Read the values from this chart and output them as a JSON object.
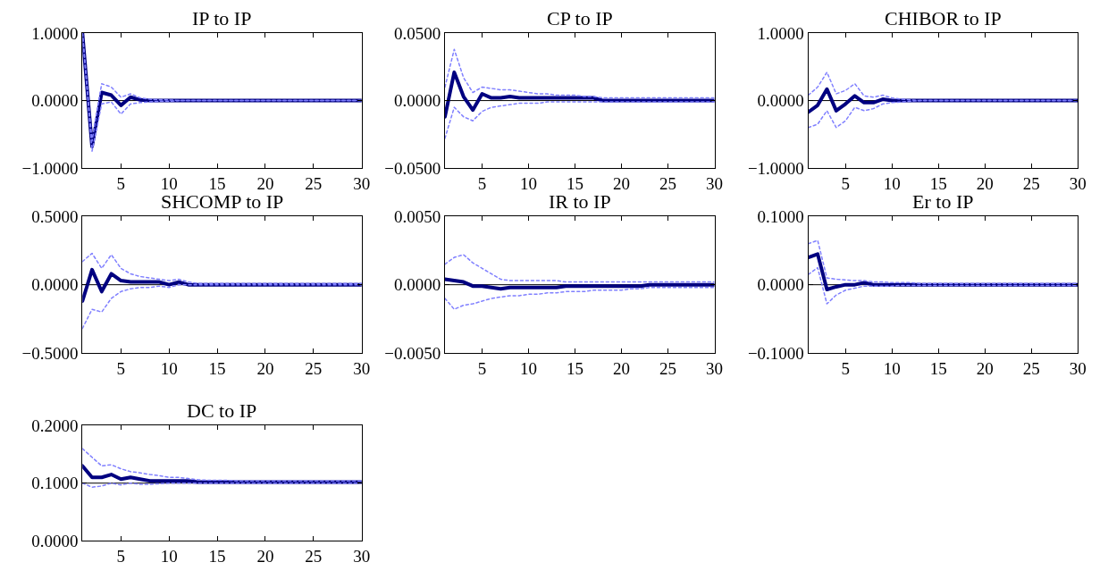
{
  "chart_data": [
    {
      "type": "line",
      "title": "IP to IP",
      "x": [
        1,
        2,
        3,
        4,
        5,
        6,
        7,
        8,
        9,
        10,
        11,
        12,
        13,
        14,
        15,
        16,
        17,
        18,
        19,
        20,
        21,
        22,
        23,
        24,
        25,
        26,
        27,
        28,
        29,
        30
      ],
      "xlim": [
        1,
        30
      ],
      "xticks": [
        5,
        10,
        15,
        20,
        25,
        30
      ],
      "ylim": [
        -1,
        1
      ],
      "yticks": [
        {
          "value": -1,
          "label": "−1.0000"
        },
        {
          "value": 0,
          "label": "0.0000"
        },
        {
          "value": 1,
          "label": "1.0000"
        }
      ],
      "ref_lines": [
        {
          "axis": "y",
          "value": 0,
          "color": "#000000"
        }
      ],
      "series": [
        {
          "color": "#8080ff",
          "line_style": "dotted",
          "values": [
            1.0,
            -0.75,
            -0.05,
            -0.02,
            -0.2,
            -0.05,
            -0.03,
            -0.02,
            -0.01,
            -0.01,
            0,
            0,
            0,
            0,
            0,
            0,
            0,
            0,
            0,
            0,
            0,
            0,
            0,
            0,
            0,
            0,
            0,
            0,
            0,
            0
          ]
        },
        {
          "color": "#8080ff",
          "line_style": "dotted",
          "values": [
            1.0,
            -0.6,
            0.25,
            0.2,
            0.05,
            0.1,
            0.04,
            0.02,
            0.01,
            0.01,
            0,
            0,
            0,
            0,
            0,
            0,
            0,
            0,
            0,
            0,
            0,
            0,
            0,
            0,
            0,
            0,
            0,
            0,
            0,
            0
          ]
        },
        {
          "color": "#000080",
          "line_style": "solid",
          "values": [
            1.0,
            -0.68,
            0.12,
            0.08,
            -0.07,
            0.05,
            0.01,
            0,
            0,
            0,
            0,
            0,
            0,
            0,
            0,
            0,
            0,
            0,
            0,
            0,
            0,
            0,
            0,
            0,
            0,
            0,
            0,
            0,
            0,
            0
          ]
        }
      ]
    },
    {
      "type": "line",
      "title": "CP to IP",
      "x": [
        1,
        2,
        3,
        4,
        5,
        6,
        7,
        8,
        9,
        10,
        11,
        12,
        13,
        14,
        15,
        16,
        17,
        18,
        19,
        20,
        21,
        22,
        23,
        24,
        25,
        26,
        27,
        28,
        29,
        30
      ],
      "xlim": [
        1,
        30
      ],
      "xticks": [
        5,
        10,
        15,
        20,
        25,
        30
      ],
      "ylim": [
        -0.05,
        0.05
      ],
      "yticks": [
        {
          "value": -0.05,
          "label": "−0.0500"
        },
        {
          "value": 0,
          "label": "0.0000"
        },
        {
          "value": 0.05,
          "label": "0.0500"
        }
      ],
      "ref_lines": [
        {
          "axis": "y",
          "value": 0,
          "color": "#000000"
        }
      ],
      "series": [
        {
          "color": "#8080ff",
          "line_style": "dotted",
          "values": [
            -0.028,
            -0.005,
            -0.012,
            -0.015,
            -0.008,
            -0.005,
            -0.004,
            -0.003,
            -0.002,
            -0.002,
            -0.002,
            -0.001,
            -0.001,
            -0.001,
            -0.001,
            -0.001,
            -0.001,
            -0.001,
            -0.001,
            -0.001,
            -0.001,
            -0.001,
            -0.001,
            -0.001,
            -0.001,
            -0.001,
            -0.001,
            -0.001,
            -0.001,
            -0.001
          ]
        },
        {
          "color": "#8080ff",
          "line_style": "dotted",
          "values": [
            0.01,
            0.038,
            0.017,
            0.006,
            0.01,
            0.009,
            0.008,
            0.008,
            0.007,
            0.006,
            0.005,
            0.005,
            0.004,
            0.004,
            0.004,
            0.003,
            0.003,
            0.002,
            0.002,
            0.002,
            0.002,
            0.002,
            0.002,
            0.002,
            0.002,
            0.002,
            0.002,
            0.002,
            0.002,
            0.002
          ]
        },
        {
          "color": "#000080",
          "line_style": "solid",
          "values": [
            -0.012,
            0.021,
            0.003,
            -0.007,
            0.005,
            0.002,
            0.002,
            0.003,
            0.002,
            0.002,
            0.002,
            0.002,
            0.002,
            0.002,
            0.002,
            0.002,
            0.002,
            0,
            0,
            0,
            0,
            0,
            0,
            0,
            0,
            0,
            0,
            0,
            0,
            0
          ]
        }
      ]
    },
    {
      "type": "line",
      "title": "CHIBOR to IP",
      "x": [
        1,
        2,
        3,
        4,
        5,
        6,
        7,
        8,
        9,
        10,
        11,
        12,
        13,
        14,
        15,
        16,
        17,
        18,
        19,
        20,
        21,
        22,
        23,
        24,
        25,
        26,
        27,
        28,
        29,
        30
      ],
      "xlim": [
        1,
        30
      ],
      "xticks": [
        5,
        10,
        15,
        20,
        25,
        30
      ],
      "ylim": [
        -1,
        1
      ],
      "yticks": [
        {
          "value": -1,
          "label": "−1.0000"
        },
        {
          "value": 0,
          "label": "0.0000"
        },
        {
          "value": 1,
          "label": "1.0000"
        }
      ],
      "ref_lines": [
        {
          "axis": "y",
          "value": 0,
          "color": "#000000"
        }
      ],
      "series": [
        {
          "color": "#8080ff",
          "line_style": "dotted",
          "values": [
            -0.4,
            -0.35,
            -0.15,
            -0.4,
            -0.3,
            -0.1,
            -0.15,
            -0.12,
            -0.05,
            -0.03,
            -0.02,
            -0.01,
            0,
            0,
            0,
            0,
            0,
            0,
            0,
            0,
            0,
            0,
            0,
            0,
            0,
            0,
            0,
            0,
            0,
            0
          ]
        },
        {
          "color": "#8080ff",
          "line_style": "dotted",
          "values": [
            0.08,
            0.2,
            0.42,
            0.1,
            0.15,
            0.25,
            0.07,
            0.05,
            0.08,
            0.04,
            0.02,
            0.01,
            0,
            0,
            0,
            0,
            0,
            0,
            0,
            0,
            0,
            0,
            0,
            0,
            0,
            0,
            0,
            0,
            0,
            0
          ]
        },
        {
          "color": "#000080",
          "line_style": "solid",
          "values": [
            -0.17,
            -0.07,
            0.17,
            -0.15,
            -0.05,
            0.07,
            -0.03,
            -0.03,
            0.02,
            0,
            0,
            0,
            0,
            0,
            0,
            0,
            0,
            0,
            0,
            0,
            0,
            0,
            0,
            0,
            0,
            0,
            0,
            0,
            0,
            0
          ]
        }
      ]
    },
    {
      "type": "line",
      "title": "SHCOMP to IP",
      "x": [
        1,
        2,
        3,
        4,
        5,
        6,
        7,
        8,
        9,
        10,
        11,
        12,
        13,
        14,
        15,
        16,
        17,
        18,
        19,
        20,
        21,
        22,
        23,
        24,
        25,
        26,
        27,
        28,
        29,
        30
      ],
      "xlim": [
        1,
        30
      ],
      "xticks": [
        5,
        10,
        15,
        20,
        25,
        30
      ],
      "ylim": [
        -0.5,
        0.5
      ],
      "yticks": [
        {
          "value": -0.5,
          "label": "−0.5000"
        },
        {
          "value": 0,
          "label": "0.0000"
        },
        {
          "value": 0.5,
          "label": "0.5000"
        }
      ],
      "ref_lines": [
        {
          "axis": "y",
          "value": 0,
          "color": "#000000"
        }
      ],
      "series": [
        {
          "color": "#8080ff",
          "line_style": "dotted",
          "values": [
            -0.32,
            -0.18,
            -0.2,
            -0.1,
            -0.05,
            -0.03,
            -0.02,
            -0.02,
            -0.01,
            -0.02,
            0,
            0,
            0,
            0,
            0,
            0,
            0,
            0,
            0,
            0,
            0,
            0,
            0,
            0,
            0,
            0,
            0,
            0,
            0,
            0
          ]
        },
        {
          "color": "#8080ff",
          "line_style": "dotted",
          "values": [
            0.17,
            0.23,
            0.12,
            0.22,
            0.12,
            0.08,
            0.06,
            0.05,
            0.04,
            0.03,
            0.04,
            0.02,
            0.01,
            0.01,
            0.01,
            0.01,
            0.01,
            0.01,
            0.01,
            0.01,
            0.01,
            0.01,
            0.01,
            0.01,
            0.01,
            0.01,
            0.01,
            0.01,
            0.01,
            0.01
          ]
        },
        {
          "color": "#000080",
          "line_style": "solid",
          "values": [
            -0.12,
            0.11,
            -0.05,
            0.08,
            0.03,
            0.02,
            0.02,
            0.02,
            0.02,
            0,
            0.02,
            0,
            0,
            0,
            0,
            0,
            0,
            0,
            0,
            0,
            0,
            0,
            0,
            0,
            0,
            0,
            0,
            0,
            0,
            0
          ]
        }
      ]
    },
    {
      "type": "line",
      "title": "IR to IP",
      "x": [
        1,
        2,
        3,
        4,
        5,
        6,
        7,
        8,
        9,
        10,
        11,
        12,
        13,
        14,
        15,
        16,
        17,
        18,
        19,
        20,
        21,
        22,
        23,
        24,
        25,
        26,
        27,
        28,
        29,
        30
      ],
      "xlim": [
        1,
        30
      ],
      "xticks": [
        5,
        10,
        15,
        20,
        25,
        30
      ],
      "ylim": [
        -0.005,
        0.005
      ],
      "yticks": [
        {
          "value": -0.005,
          "label": "−0.0050"
        },
        {
          "value": 0,
          "label": "0.0000"
        },
        {
          "value": 0.005,
          "label": "0.0050"
        }
      ],
      "ref_lines": [
        {
          "axis": "y",
          "value": 0,
          "color": "#000000"
        }
      ],
      "series": [
        {
          "color": "#8080ff",
          "line_style": "dotted",
          "values": [
            -0.001,
            -0.0018,
            -0.0015,
            -0.0014,
            -0.0012,
            -0.001,
            -0.0009,
            -0.0008,
            -0.0008,
            -0.0007,
            -0.0007,
            -0.0006,
            -0.0006,
            -0.0005,
            -0.0005,
            -0.0005,
            -0.0004,
            -0.0004,
            -0.0004,
            -0.0004,
            -0.0003,
            -0.0003,
            -0.0002,
            -0.0002,
            -0.0002,
            -0.0002,
            -0.0002,
            -0.0002,
            -0.0002,
            -0.0002
          ]
        },
        {
          "color": "#8080ff",
          "line_style": "dotted",
          "values": [
            0.0015,
            0.002,
            0.0022,
            0.0016,
            0.0012,
            0.0008,
            0.0004,
            0.0003,
            0.0003,
            0.0003,
            0.0003,
            0.0003,
            0.0003,
            0.0002,
            0.0002,
            0.0002,
            0.0002,
            0.0002,
            0.0002,
            0.0002,
            0.0002,
            0.0002,
            0.0002,
            0.0002,
            0.0002,
            0.0002,
            0.0002,
            0.0002,
            0.0002,
            0.0002
          ]
        },
        {
          "color": "#000080",
          "line_style": "solid",
          "values": [
            0.0004,
            0.0003,
            0.0002,
            -0.0001,
            -0.0001,
            -0.0002,
            -0.0003,
            -0.0002,
            -0.0002,
            -0.0002,
            -0.0002,
            -0.0002,
            -0.0002,
            -0.0001,
            -0.0001,
            -0.0001,
            -0.0001,
            -0.0001,
            -0.0001,
            -0.0001,
            -0.0001,
            -0.0001,
            0,
            0,
            0,
            0,
            0,
            0,
            0,
            0
          ]
        }
      ]
    },
    {
      "type": "line",
      "title": "Er to IP",
      "x": [
        1,
        2,
        3,
        4,
        5,
        6,
        7,
        8,
        9,
        10,
        11,
        12,
        13,
        14,
        15,
        16,
        17,
        18,
        19,
        20,
        21,
        22,
        23,
        24,
        25,
        26,
        27,
        28,
        29,
        30
      ],
      "xlim": [
        1,
        30
      ],
      "xticks": [
        5,
        10,
        15,
        20,
        25,
        30
      ],
      "ylim": [
        -0.1,
        0.1
      ],
      "yticks": [
        {
          "value": -0.1,
          "label": "−0.1000"
        },
        {
          "value": 0,
          "label": "0.0000"
        },
        {
          "value": 0.1,
          "label": "0.1000"
        }
      ],
      "ref_lines": [
        {
          "axis": "y",
          "value": 0,
          "color": "#000000"
        }
      ],
      "series": [
        {
          "color": "#8080ff",
          "line_style": "dotted",
          "values": [
            0.015,
            0.025,
            -0.028,
            -0.015,
            -0.008,
            -0.005,
            -0.002,
            -0.002,
            -0.002,
            -0.002,
            -0.001,
            -0.001,
            -0.001,
            -0.001,
            -0.001,
            -0.001,
            -0.001,
            -0.001,
            -0.001,
            -0.001,
            -0.001,
            -0.001,
            -0.001,
            -0.001,
            -0.001,
            -0.001,
            -0.001,
            -0.001,
            -0.001,
            -0.001
          ]
        },
        {
          "color": "#8080ff",
          "line_style": "dotted",
          "values": [
            0.06,
            0.065,
            0.01,
            0.008,
            0.007,
            0.006,
            0.006,
            0.004,
            0.004,
            0.003,
            0.003,
            0.003,
            0.002,
            0.002,
            0.002,
            0.002,
            0.002,
            0.002,
            0.002,
            0.002,
            0.002,
            0.002,
            0.002,
            0.002,
            0.002,
            0.002,
            0.002,
            0.002,
            0.002,
            0.002
          ]
        },
        {
          "color": "#000080",
          "line_style": "solid",
          "values": [
            0.04,
            0.045,
            -0.007,
            -0.003,
            0,
            0,
            0.003,
            0,
            0,
            0,
            0,
            0,
            0,
            0,
            0,
            0,
            0,
            0,
            0,
            0,
            0,
            0,
            0,
            0,
            0,
            0,
            0,
            0,
            0,
            0
          ]
        }
      ]
    },
    {
      "type": "line",
      "title": "DC to IP",
      "x": [
        1,
        2,
        3,
        4,
        5,
        6,
        7,
        8,
        9,
        10,
        11,
        12,
        13,
        14,
        15,
        16,
        17,
        18,
        19,
        20,
        21,
        22,
        23,
        24,
        25,
        26,
        27,
        28,
        29,
        30
      ],
      "xlim": [
        1,
        30
      ],
      "xticks": [
        5,
        10,
        15,
        20,
        25,
        30
      ],
      "ylim": [
        0,
        0.2
      ],
      "yticks": [
        {
          "value": 0,
          "label": "0.0000"
        },
        {
          "value": 0.1,
          "label": "0.1000"
        },
        {
          "value": 0.2,
          "label": "0.2000"
        }
      ],
      "ref_lines": [
        {
          "axis": "y",
          "value": 0.1,
          "color": "#000000"
        }
      ],
      "series": [
        {
          "color": "#8080ff",
          "line_style": "dotted",
          "values": [
            0.1,
            0.093,
            0.095,
            0.1,
            0.097,
            0.1,
            0.098,
            0.098,
            0.099,
            0.1,
            0.1,
            0.1,
            0.1,
            0.1,
            0.1,
            0.1,
            0.1,
            0.1,
            0.1,
            0.1,
            0.1,
            0.1,
            0.1,
            0.1,
            0.1,
            0.1,
            0.1,
            0.1,
            0.1,
            0.1
          ]
        },
        {
          "color": "#8080ff",
          "line_style": "dotted",
          "values": [
            0.16,
            0.145,
            0.13,
            0.132,
            0.125,
            0.12,
            0.118,
            0.115,
            0.113,
            0.11,
            0.11,
            0.108,
            0.106,
            0.105,
            0.105,
            0.105,
            0.104,
            0.104,
            0.104,
            0.104,
            0.104,
            0.104,
            0.104,
            0.104,
            0.104,
            0.104,
            0.104,
            0.104,
            0.104,
            0.104
          ]
        },
        {
          "color": "#000080",
          "line_style": "solid",
          "values": [
            0.13,
            0.11,
            0.11,
            0.115,
            0.107,
            0.11,
            0.107,
            0.104,
            0.104,
            0.104,
            0.104,
            0.104,
            0.102,
            0.102,
            0.102,
            0.102,
            0.102,
            0.102,
            0.102,
            0.102,
            0.102,
            0.102,
            0.102,
            0.102,
            0.102,
            0.102,
            0.102,
            0.102,
            0.102,
            0.102
          ]
        }
      ]
    }
  ]
}
